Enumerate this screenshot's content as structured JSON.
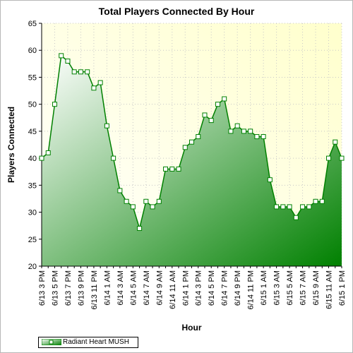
{
  "chart_data": {
    "type": "area",
    "title": "Total Players Connected By Hour",
    "xlabel": "Hour",
    "ylabel": "Players Connected",
    "ylim": [
      20,
      65
    ],
    "y_ticks": [
      20,
      25,
      30,
      35,
      40,
      45,
      50,
      55,
      60,
      65
    ],
    "grid": true,
    "legend_position": "bottom-left",
    "x_tick_labels": [
      "6/13 3 PM",
      "6/13 5 PM",
      "6/13 7 PM",
      "6/13 9 PM",
      "6/13 11 PM",
      "6/14 1 AM",
      "6/14 3 AM",
      "6/14 5 AM",
      "6/14 7 AM",
      "6/14 9 AM",
      "6/14 11 AM",
      "6/14 1 PM",
      "6/14 3 PM",
      "6/14 5 PM",
      "6/14 7 PM",
      "6/14 9 PM",
      "6/14 11 PM",
      "6/15 1 AM",
      "6/15 3 AM",
      "6/15 5 AM",
      "6/15 7 AM",
      "6/15 9 AM",
      "6/15 11 AM",
      "6/15 1 PM"
    ],
    "series": [
      {
        "name": "Radiant Heart MUSH",
        "values": [
          40,
          41,
          50,
          59,
          58,
          56,
          56,
          56,
          53,
          54,
          46,
          40,
          34,
          32,
          31,
          27,
          32,
          31,
          32,
          38,
          38,
          38,
          42,
          43,
          44,
          48,
          47,
          50,
          51,
          45,
          46,
          45,
          45,
          44,
          44,
          36,
          31,
          31,
          31,
          29,
          31,
          31,
          32,
          32,
          40,
          43,
          40
        ]
      }
    ],
    "colors": {
      "line": "#008000",
      "fill_light": "#ffffff",
      "fill_dark": "#008000",
      "plot_bg": "#ffffe0",
      "marker_fill": "#ffffff"
    }
  }
}
